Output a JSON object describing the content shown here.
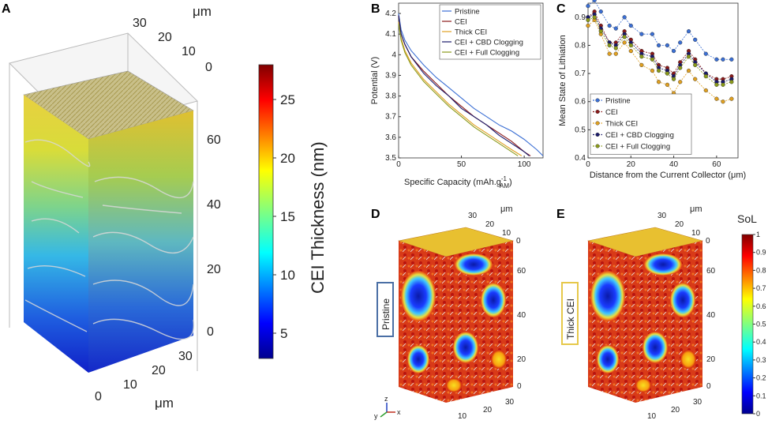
{
  "panel_labels": {
    "a": "A",
    "b": "B",
    "c": "C",
    "d": "D",
    "e": "E"
  },
  "colors": {
    "pristine": "#3b6fd4",
    "cei": "#8b1a1a",
    "thick_cei": "#e0a020",
    "cei_cbd": "#1a1a6a",
    "cei_full": "#8a9a1a",
    "frame_blue": "#4a6fa5",
    "frame_gold": "#e6c84a"
  },
  "panel_a": {
    "colorbar_title": "CEI Thickness (nm)",
    "colorbar_ticks": [
      "25",
      "20",
      "15",
      "10",
      "5"
    ],
    "unit": "μm",
    "top_ticks": [
      "30",
      "20",
      "10",
      "0"
    ],
    "vertical_ticks": [
      "60",
      "40",
      "20",
      "0"
    ],
    "bottom_ticks": [
      "0",
      "10",
      "20",
      "30"
    ]
  },
  "panel_d": {
    "box_label": "Pristine",
    "unit": "μm",
    "top_ticks": [
      "30",
      "20",
      "10",
      "0"
    ],
    "vertical_ticks": [
      "60",
      "40",
      "20",
      "0"
    ],
    "bottom_ticks": [
      "10",
      "20",
      "30"
    ],
    "axes": {
      "x": "x",
      "y": "y",
      "z": "z"
    }
  },
  "panel_e": {
    "box_label": "Thick CEI",
    "unit": "μm",
    "top_ticks": [
      "30",
      "20",
      "10",
      "0"
    ],
    "vertical_ticks": [
      "60",
      "40",
      "20",
      "0"
    ],
    "bottom_ticks": [
      "10",
      "20",
      "30"
    ],
    "colorbar_title": "SoL",
    "colorbar_ticks": [
      "1",
      "0.9",
      "0.8",
      "0.7",
      "0.6",
      "0.5",
      "0.4",
      "0.3",
      "0.2",
      "0.1",
      "0"
    ]
  },
  "chart_data": [
    {
      "type": "line",
      "id": "B",
      "title": "",
      "xlabel": "Specific Capacity (mAh.g",
      "xlabel_sup": "-1",
      "xlabel_sub": "AM",
      "xlabel_close": ")",
      "ylabel": "Potential (V)",
      "xlim": [
        0,
        115
      ],
      "ylim": [
        3.5,
        4.25
      ],
      "xticks": [
        0,
        50,
        100
      ],
      "yticks": [
        3.5,
        3.6,
        3.7,
        3.8,
        3.9,
        4.0,
        4.1,
        4.2
      ],
      "legend": "top-right",
      "series": [
        {
          "name": "Pristine",
          "color": "#3b6fd4",
          "x": [
            0,
            2,
            5,
            10,
            20,
            30,
            40,
            50,
            60,
            70,
            80,
            90,
            100,
            110,
            115
          ],
          "y": [
            4.2,
            4.12,
            4.07,
            4.02,
            3.95,
            3.89,
            3.84,
            3.79,
            3.74,
            3.7,
            3.66,
            3.63,
            3.59,
            3.54,
            3.51
          ]
        },
        {
          "name": "CEI",
          "color": "#8b1a1a",
          "x": [
            0,
            2,
            5,
            10,
            20,
            30,
            40,
            50,
            60,
            70,
            80,
            90,
            100,
            105
          ],
          "y": [
            4.19,
            4.1,
            4.05,
            3.99,
            3.92,
            3.86,
            3.8,
            3.75,
            3.7,
            3.66,
            3.62,
            3.58,
            3.53,
            3.51
          ]
        },
        {
          "name": "Thick CEI",
          "color": "#e0a020",
          "x": [
            0,
            2,
            5,
            10,
            20,
            30,
            40,
            50,
            60,
            70,
            80,
            90,
            98
          ],
          "y": [
            4.16,
            4.08,
            4.02,
            3.96,
            3.88,
            3.82,
            3.76,
            3.71,
            3.66,
            3.62,
            3.58,
            3.54,
            3.51
          ]
        },
        {
          "name": "CEI + CBD Clogging",
          "color": "#1a1a6a",
          "x": [
            0,
            2,
            5,
            10,
            20,
            30,
            40,
            50,
            60,
            70,
            80,
            90,
            100,
            104
          ],
          "y": [
            4.19,
            4.1,
            4.05,
            3.99,
            3.91,
            3.85,
            3.8,
            3.74,
            3.7,
            3.66,
            3.61,
            3.57,
            3.53,
            3.51
          ]
        },
        {
          "name": "CEI + Full Clogging",
          "color": "#8a9a1a",
          "x": [
            0,
            2,
            5,
            10,
            20,
            30,
            40,
            50,
            60,
            70,
            80,
            90,
            95
          ],
          "y": [
            4.15,
            4.07,
            4.01,
            3.95,
            3.87,
            3.81,
            3.75,
            3.7,
            3.65,
            3.61,
            3.57,
            3.53,
            3.51
          ]
        }
      ]
    },
    {
      "type": "line",
      "id": "C",
      "title": "",
      "xlabel": "Distance from the Current Collector (μm)",
      "ylabel": "Mean State of Lithiation",
      "xlim": [
        0,
        70
      ],
      "ylim": [
        0.4,
        0.95
      ],
      "xticks": [
        0,
        20,
        40,
        60
      ],
      "yticks": [
        0.4,
        0.5,
        0.6,
        0.7,
        0.8,
        0.9
      ],
      "legend": "bottom-left",
      "markers": true,
      "series": [
        {
          "name": "Pristine",
          "color": "#3b6fd4",
          "x": [
            0,
            3,
            6,
            10,
            13,
            17,
            20,
            25,
            30,
            33,
            37,
            40,
            43,
            47,
            50,
            55,
            60,
            63,
            67
          ],
          "y": [
            0.94,
            0.96,
            0.92,
            0.87,
            0.86,
            0.9,
            0.87,
            0.84,
            0.84,
            0.8,
            0.8,
            0.78,
            0.81,
            0.85,
            0.82,
            0.77,
            0.75,
            0.75,
            0.75
          ]
        },
        {
          "name": "CEI",
          "color": "#8b1a1a",
          "x": [
            0,
            3,
            6,
            10,
            13,
            17,
            20,
            25,
            30,
            33,
            37,
            40,
            43,
            47,
            50,
            55,
            60,
            63,
            67
          ],
          "y": [
            0.9,
            0.92,
            0.87,
            0.81,
            0.81,
            0.85,
            0.82,
            0.78,
            0.77,
            0.73,
            0.72,
            0.7,
            0.74,
            0.78,
            0.75,
            0.7,
            0.68,
            0.68,
            0.69
          ]
        },
        {
          "name": "Thick CEI",
          "color": "#e0a020",
          "x": [
            0,
            3,
            6,
            10,
            13,
            17,
            20,
            25,
            30,
            33,
            37,
            40,
            43,
            47,
            50,
            55,
            60,
            63,
            67
          ],
          "y": [
            0.87,
            0.89,
            0.84,
            0.77,
            0.77,
            0.81,
            0.78,
            0.73,
            0.71,
            0.67,
            0.66,
            0.63,
            0.67,
            0.71,
            0.68,
            0.64,
            0.61,
            0.6,
            0.61
          ]
        },
        {
          "name": "CEI + CBD Clogging",
          "color": "#1a1a6a",
          "x": [
            0,
            3,
            6,
            10,
            13,
            17,
            20,
            25,
            30,
            33,
            37,
            40,
            43,
            47,
            50,
            55,
            60,
            63,
            67
          ],
          "y": [
            0.9,
            0.91,
            0.86,
            0.81,
            0.8,
            0.84,
            0.81,
            0.77,
            0.76,
            0.72,
            0.71,
            0.69,
            0.73,
            0.77,
            0.74,
            0.7,
            0.67,
            0.67,
            0.68
          ]
        },
        {
          "name": "CEI + Full Clogging",
          "color": "#8a9a1a",
          "x": [
            0,
            3,
            6,
            10,
            13,
            17,
            20,
            25,
            30,
            33,
            37,
            40,
            43,
            47,
            50,
            55,
            60,
            63,
            67
          ],
          "y": [
            0.89,
            0.9,
            0.85,
            0.8,
            0.79,
            0.83,
            0.8,
            0.76,
            0.75,
            0.71,
            0.7,
            0.68,
            0.72,
            0.76,
            0.73,
            0.69,
            0.66,
            0.66,
            0.67
          ]
        }
      ]
    }
  ]
}
